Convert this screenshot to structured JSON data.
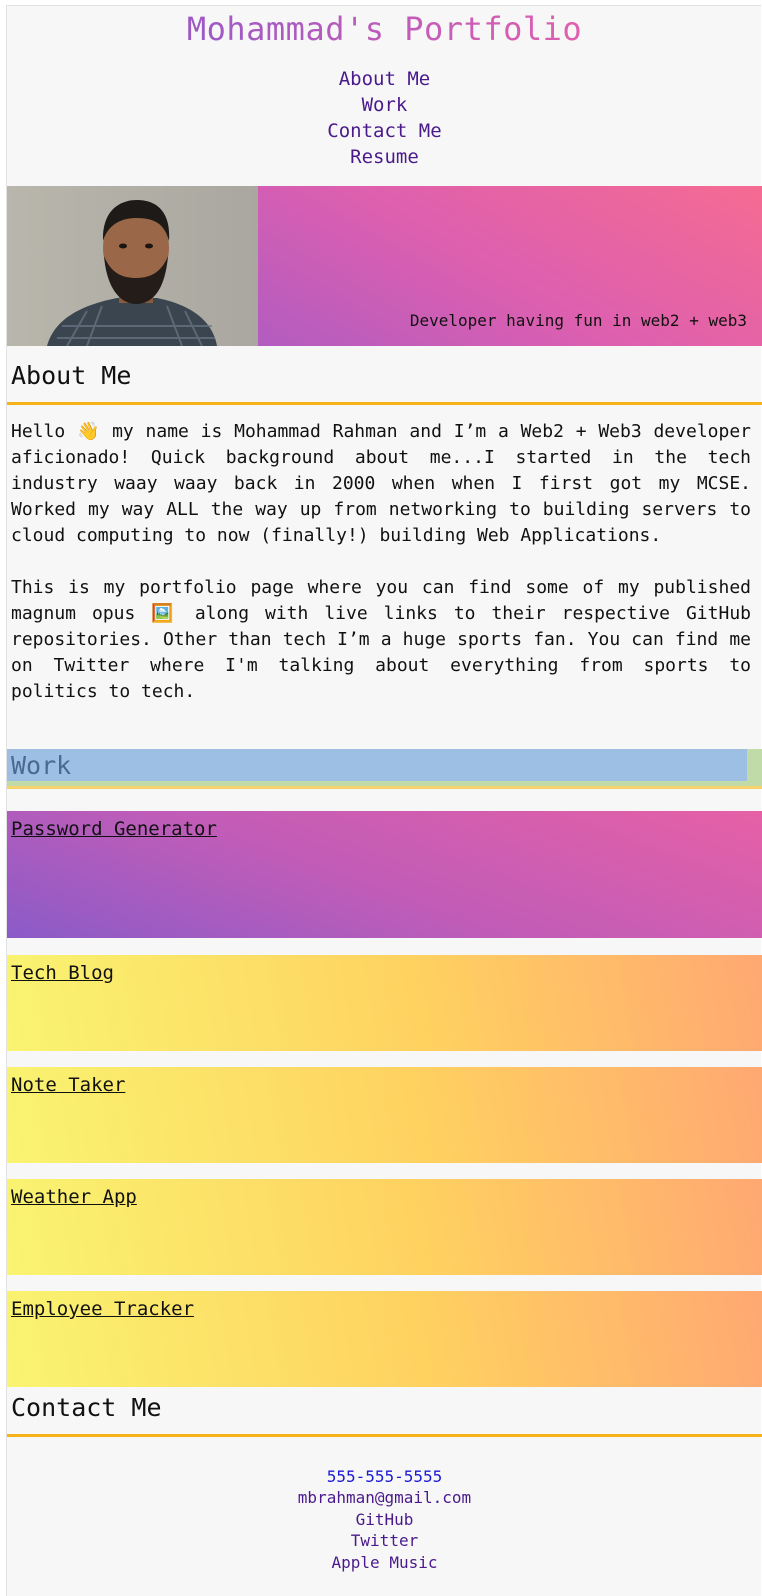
{
  "header": {
    "title": "Mohammad's Portfolio",
    "nav": [
      {
        "label": "About Me"
      },
      {
        "label": "Work"
      },
      {
        "label": "Contact Me"
      },
      {
        "label": "Resume"
      }
    ]
  },
  "hero": {
    "tagline": "Developer having fun in web2 + web3"
  },
  "about": {
    "heading": "About Me",
    "paragraphs": [
      "Hello 👋 my name is Mohammad Rahman and I’m a Web2 + Web3 developer aficionado! Quick background about me...I started in the tech industry waay waay back in 2000 when when I first got my MCSE. Worked my way ALL the way up from networking to building servers to cloud computing to now (finally!) building Web Applications.",
      "This is my portfolio page where you can find some of my published magnum opus 🖼️ along with live links to their respective GitHub repositories. Other than tech I’m a huge sports fan. You can find me on Twitter where I'm talking about everything from sports to politics to tech."
    ]
  },
  "work": {
    "heading": "Work",
    "projects": [
      {
        "title": "Password Generator"
      },
      {
        "title": "Tech Blog"
      },
      {
        "title": "Note Taker"
      },
      {
        "title": "Weather App"
      },
      {
        "title": "Employee Tracker"
      }
    ]
  },
  "contact": {
    "heading": "Contact Me",
    "phone": "555-555-5555",
    "email": "mbrahman@gmail.com",
    "links": [
      {
        "label": "GitHub"
      },
      {
        "label": "Twitter"
      },
      {
        "label": "Apple Music"
      }
    ]
  },
  "colors": {
    "accent_underline": "#f7b21a",
    "nav_link": "#4a1a8c",
    "phone_link": "#1a1ad6",
    "work_heading_bg": "#9dbfe3"
  }
}
